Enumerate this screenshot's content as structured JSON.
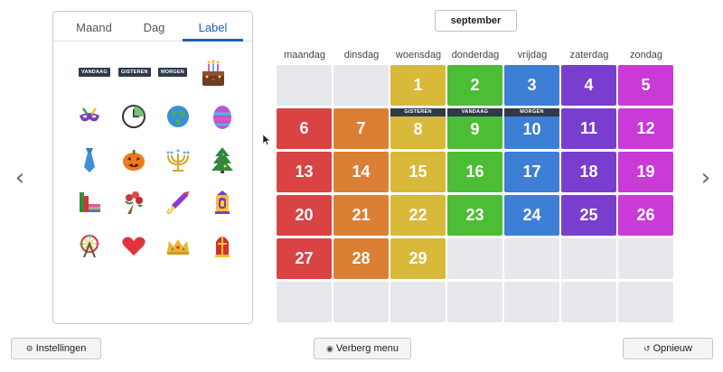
{
  "tabs": [
    {
      "label": "Maand"
    },
    {
      "label": "Dag"
    },
    {
      "label": "Label"
    }
  ],
  "chips": [
    "VANDAAG",
    "GISTEREN",
    "MORGEN"
  ],
  "sticker_icons": [
    [
      "birthday-cake-icon"
    ],
    [
      "carnival-mask-icon",
      "clock-icon",
      "earth-globe-icon",
      "easter-egg-icon"
    ],
    [
      "necktie-icon",
      "jack-o-lantern-icon",
      "menorah-icon",
      "christmas-tree-icon"
    ],
    [
      "books-icon",
      "flower-bouquet-icon",
      "firework-rocket-icon",
      "lantern-icon"
    ],
    [
      "ferris-wheel-icon",
      "heart-icon",
      "crown-icon",
      "sinterklaas-mitre-icon"
    ]
  ],
  "month": "september",
  "weekdays": [
    "maandag",
    "dinsdag",
    "woensdag",
    "donderdag",
    "vrijdag",
    "zaterdag",
    "zondag"
  ],
  "weekday_colors": [
    "#d94343",
    "#db7f35",
    "#d8b93a",
    "#4cbd35",
    "#3d7fd4",
    "#7a3ecf",
    "#c93ad6"
  ],
  "empty_color": "#e6e8ec",
  "days": [
    [
      "",
      "",
      "1",
      "2",
      "3",
      "4",
      "5"
    ],
    [
      "6",
      "7",
      "8",
      "9",
      "10",
      "11",
      "12"
    ],
    [
      "13",
      "14",
      "15",
      "16",
      "17",
      "18",
      "19"
    ],
    [
      "20",
      "21",
      "22",
      "23",
      "24",
      "25",
      "26"
    ],
    [
      "27",
      "28",
      "29",
      "",
      "",
      "",
      ""
    ],
    [
      "",
      "",
      "",
      "",
      "",
      "",
      ""
    ]
  ],
  "day_labels": {
    "8": "GISTEREN",
    "9": "VANDAAG",
    "10": "MORGEN"
  },
  "buttons": {
    "settings": "Instellingen",
    "hide_menu": "Verberg menu",
    "restart": "Opnieuw"
  }
}
